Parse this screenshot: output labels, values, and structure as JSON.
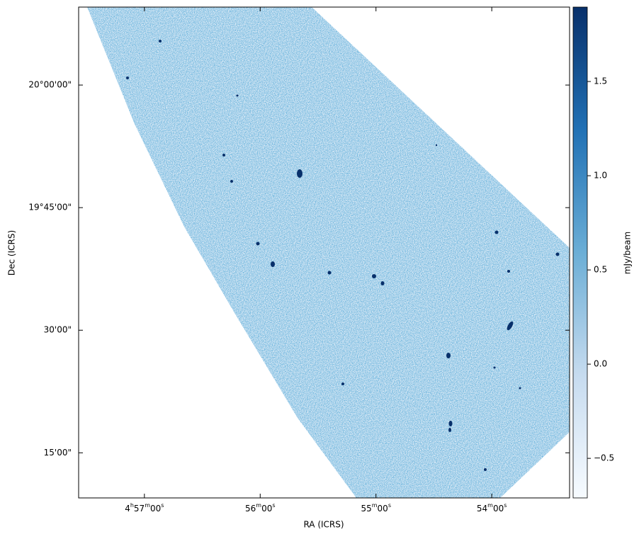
{
  "chart_data": {
    "type": "image",
    "x_label": "RA (ICRS)",
    "y_label": "Dec (ICRS)",
    "colorbar_label": "mJy/beam",
    "xlim": [
      74.392,
      73.332
    ],
    "ylim": [
      19.158,
      20.159
    ],
    "xticks": [
      {
        "value": 74.25,
        "label": "4h57m00s"
      },
      {
        "value": 74.0,
        "label": "56m00s"
      },
      {
        "value": 73.75,
        "label": "55m00s"
      },
      {
        "value": 73.5,
        "label": "54m00s"
      }
    ],
    "yticks": [
      {
        "value": 20.0,
        "label": "20°00'00\""
      },
      {
        "value": 19.75,
        "label": "19°45'00\""
      },
      {
        "value": 19.5,
        "label": "30'00\""
      },
      {
        "value": 19.25,
        "label": "15'00\""
      }
    ],
    "clim": [
      -0.71,
      1.895
    ],
    "cticks": [
      {
        "value": -0.5,
        "label": "−0.5"
      },
      {
        "value": 0,
        "label": "0.0"
      },
      0.5,
      {
        "value": 1,
        "label": "1.0"
      },
      1.5
    ],
    "colormap": [
      "#f7fbff",
      "#c6dbef",
      "#6baed6",
      "#2171b5",
      "#08306b"
    ]
  }
}
